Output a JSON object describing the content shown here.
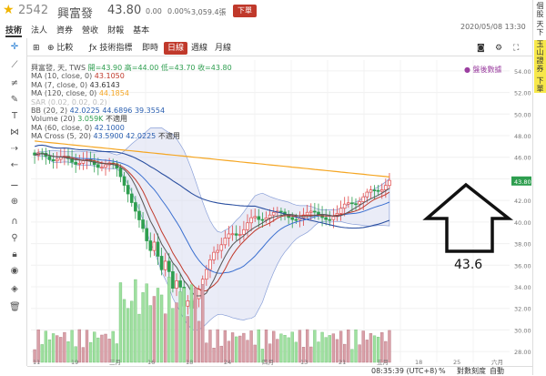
{
  "header": {
    "ticker": "2542",
    "name": "興富發",
    "price": "43.80",
    "change": "0.00",
    "percent": "0.00%",
    "volume": "3,059.4張",
    "order_label": "下單"
  },
  "tabs": [
    "技術",
    "法人",
    "資券",
    "營收",
    "財報",
    "基本"
  ],
  "datetime": "2020/05/08 13:30",
  "toolbar": {
    "compare": "比較",
    "indicators": "技術指標",
    "intraday": "即時",
    "daily": "日線",
    "weekly": "週線",
    "monthly": "月線"
  },
  "legend": {
    "main": "興富發, 天, TWS",
    "open_label": "開=43.90",
    "high_label": "高=44.00",
    "low_label": "低=43.70",
    "close_label": "收=43.80",
    "ma10_label": "MA (10, close, 0)",
    "ma10_value": "43.1050",
    "ma7_label": "MA (7, close, 0)",
    "ma7_value": "43.6143",
    "ma120_label": "MA (120, close, 0)",
    "ma120_value": "44.1854",
    "sar_label": "SAR (0.02, 0.02, 0.2)",
    "bb_label": "BB (20, 2)",
    "bb_v1": "42.0225",
    "bb_v2": "44.6896",
    "bb_v3": "39.3554",
    "vol_label": "Volume (20)",
    "vol_value": "3.059K",
    "vol_na": "不適用",
    "ma60_label": "MA (60, close, 0)",
    "ma60_value": "42.1000",
    "cross_label": "MA Cross (5, 20)",
    "cross_v1": "43.5900",
    "cross_v2": "42.0225",
    "cross_na": "不適用"
  },
  "watermark": "盤後數據",
  "annotation": "43.6",
  "price_axis": [
    "54.00",
    "52.00",
    "50.00",
    "48.00",
    "46.00",
    "44.00",
    "43.80",
    "42.00",
    "40.00",
    "38.00",
    "36.00",
    "34.00",
    "32.00",
    "30.00",
    "28.00"
  ],
  "date_axis": [
    "11",
    "19",
    "三月",
    "16",
    "18",
    "24",
    "四月",
    "13",
    "21",
    "五月",
    "18",
    "25",
    "六月"
  ],
  "right_tabs": [
    "個股",
    "天下",
    "玉山證券",
    "下單"
  ],
  "footer": {
    "clock": "08:35:39 (UTC+8)",
    "pct": "%",
    "log": "對數刻度",
    "auto": "自動"
  },
  "colors": {
    "up": "#e04b4b",
    "down": "#2e9e4f",
    "ma120": "#f5a623",
    "bb_fill": "#d8dcf0",
    "accent_red": "#c0392b"
  }
}
